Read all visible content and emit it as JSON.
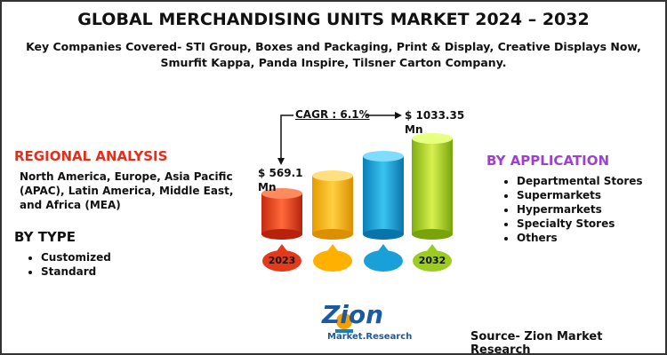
{
  "header": {
    "title": "GLOBAL MERCHANDISING UNITS MARKET 2024 – 2032",
    "subtitle": "Key Companies Covered- STI Group, Boxes and Packaging, Print & Display, Creative Displays Now, Smurfit Kappa, Panda Inspire, Tilsner Carton Company."
  },
  "regional": {
    "heading": "REGIONAL ANALYSIS",
    "text": "North America, Europe, Asia Pacific (APAC), Latin America, Middle East, and Africa (MEA)"
  },
  "by_type": {
    "heading": "BY TYPE",
    "items": [
      "Customized",
      "Standard"
    ]
  },
  "by_application": {
    "heading": "BY APPLICATION",
    "items": [
      "Departmental Stores",
      "Supermarkets",
      "Hypermarkets",
      "Specialty Stores",
      "Others"
    ]
  },
  "graphic": {
    "cagr": "CAGR : 6.1%",
    "start_value": "$ 569.1 Mn",
    "end_value": "$ 1033.35 Mn",
    "start_year": "2023",
    "end_year": "2032"
  },
  "logo": {
    "name": "Zion",
    "tagline": "Market.Research"
  },
  "footer": {
    "source": "Source- Zion Market Research"
  }
}
